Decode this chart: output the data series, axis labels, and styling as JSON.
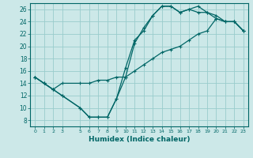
{
  "xlabel": "Humidex (Indice chaleur)",
  "bg_color": "#cce8e8",
  "grid_color": "#99cccc",
  "line_color": "#006666",
  "xlim": [
    -0.5,
    23.5
  ],
  "ylim": [
    7,
    27
  ],
  "xticks": [
    0,
    1,
    2,
    3,
    5,
    6,
    7,
    8,
    9,
    10,
    11,
    12,
    13,
    14,
    15,
    16,
    17,
    18,
    19,
    20,
    21,
    22,
    23
  ],
  "yticks": [
    8,
    10,
    12,
    14,
    16,
    18,
    20,
    22,
    24,
    26
  ],
  "curve1_x": [
    0,
    1,
    2,
    3,
    5,
    6,
    7,
    8,
    9,
    10,
    11,
    12,
    13,
    14,
    15,
    16,
    17,
    18,
    19,
    20,
    21,
    22,
    23
  ],
  "curve1_y": [
    15,
    14,
    13,
    12,
    10,
    8.5,
    8.5,
    8.5,
    11.5,
    16.5,
    21,
    22.5,
    25,
    26.5,
    26.5,
    25.5,
    26,
    25.5,
    25.5,
    25,
    24,
    24,
    22.5
  ],
  "curve2_x": [
    0,
    1,
    2,
    3,
    5,
    6,
    7,
    8,
    9,
    10,
    11,
    12,
    13,
    14,
    15,
    16,
    17,
    18,
    19,
    20,
    21,
    22,
    23
  ],
  "curve2_y": [
    15,
    14,
    13,
    12,
    10,
    8.5,
    8.5,
    8.5,
    11.5,
    15,
    20.5,
    23,
    25,
    26.5,
    26.5,
    25.5,
    26,
    26.5,
    25.5,
    24.5,
    24,
    24,
    22.5
  ],
  "curve3_x": [
    0,
    1,
    2,
    3,
    5,
    6,
    7,
    8,
    9,
    10,
    11,
    12,
    13,
    14,
    15,
    16,
    17,
    18,
    19,
    20,
    21,
    22,
    23
  ],
  "curve3_y": [
    15,
    14,
    13,
    14,
    14,
    14,
    14.5,
    14.5,
    15,
    15,
    16,
    17,
    18,
    19,
    19.5,
    20,
    21,
    22,
    22.5,
    24.5,
    24,
    24,
    22.5
  ]
}
